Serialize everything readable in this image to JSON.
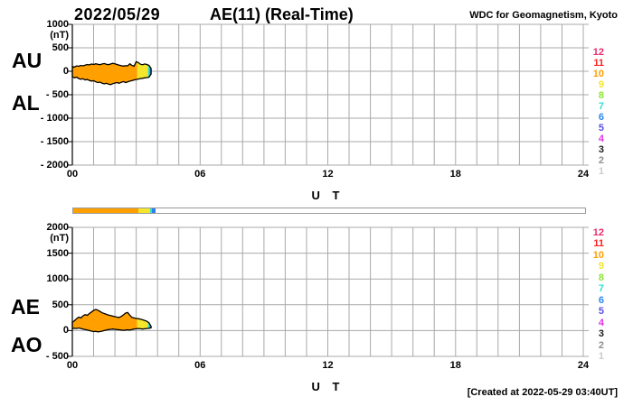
{
  "chart_data": {
    "type": "area",
    "date": "2022/05/29",
    "title": "AE(11) (Real-Time)",
    "source": "WDC for Geomagnetism, Kyoto",
    "panels": [
      {
        "id": "aual",
        "left_labels": [
          "AU",
          "AL"
        ],
        "ylabel": "(nT)",
        "ylim": [
          -2000,
          1000
        ],
        "yticks": [
          {
            "v": 1000,
            "label": "1000"
          },
          {
            "v": 500,
            "label": "500"
          },
          {
            "v": 0,
            "label": "0"
          },
          {
            "v": -500,
            "label": "- 500"
          },
          {
            "v": -1000,
            "label": "- 1000"
          },
          {
            "v": -1500,
            "label": "- 1500"
          },
          {
            "v": -2000,
            "label": "- 2000"
          }
        ],
        "xlim": [
          0,
          24
        ],
        "xgrid": 1,
        "xticks": [
          {
            "t": 0,
            "label": "00"
          },
          {
            "t": 6,
            "label": "06"
          },
          {
            "t": 12,
            "label": "12"
          },
          {
            "t": 18,
            "label": "18"
          },
          {
            "t": 24,
            "label": "24"
          }
        ],
        "xlabel": "U T",
        "x": [
          0,
          0.1,
          0.2,
          0.3,
          0.4,
          0.5,
          0.6,
          0.7,
          0.8,
          0.9,
          1,
          1.1,
          1.2,
          1.3,
          1.4,
          1.5,
          1.6,
          1.7,
          1.8,
          1.9,
          2,
          2.1,
          2.2,
          2.3,
          2.4,
          2.5,
          2.6,
          2.7,
          2.8,
          2.9,
          3,
          3.1,
          3.2,
          3.3,
          3.4,
          3.5,
          3.6,
          3.7
        ],
        "series": [
          {
            "name": "AU",
            "values": [
              100,
              90,
              115,
              105,
              125,
              115,
              130,
              145,
              135,
              155,
              145,
              160,
              150,
              140,
              155,
              165,
              150,
              140,
              155,
              170,
              160,
              145,
              130,
              120,
              110,
              120,
              115,
              160,
              125,
              110,
              205,
              185,
              150,
              140,
              155,
              145,
              125,
              60
            ]
          },
          {
            "name": "AL",
            "values": [
              -115,
              -140,
              -125,
              -155,
              -170,
              -160,
              -185,
              -175,
              -195,
              -210,
              -200,
              -225,
              -240,
              -230,
              -255,
              -270,
              -255,
              -275,
              -285,
              -265,
              -250,
              -240,
              -255,
              -235,
              -220,
              -240,
              -225,
              -210,
              -200,
              -185,
              -175,
              -165,
              -155,
              -150,
              -140,
              -135,
              -125,
              -60
            ]
          }
        ],
        "segments": [
          {
            "from": 0,
            "to": 3.05,
            "color": "#FFA000"
          },
          {
            "from": 3.05,
            "to": 3.55,
            "color": "#F6E62B"
          },
          {
            "from": 3.55,
            "to": 3.63,
            "color": "#35DECC"
          },
          {
            "from": 3.63,
            "to": 3.72,
            "color": "#2E7EF0"
          }
        ]
      },
      {
        "id": "aeao",
        "left_labels": [
          "AE",
          "AO"
        ],
        "ylabel": "(nT)",
        "ylim": [
          -500,
          2000
        ],
        "yticks": [
          {
            "v": 2000,
            "label": "2000"
          },
          {
            "v": 1500,
            "label": "1500"
          },
          {
            "v": 1000,
            "label": "1000"
          },
          {
            "v": 500,
            "label": "500"
          },
          {
            "v": 0,
            "label": "0"
          },
          {
            "v": -500,
            "label": "- 500"
          }
        ],
        "xlim": [
          0,
          24
        ],
        "xgrid": 1,
        "xticks": [
          {
            "t": 0,
            "label": "00"
          },
          {
            "t": 6,
            "label": "06"
          },
          {
            "t": 12,
            "label": "12"
          },
          {
            "t": 18,
            "label": "18"
          },
          {
            "t": 24,
            "label": "24"
          }
        ],
        "xlabel": "U T",
        "x": [
          0,
          0.1,
          0.2,
          0.3,
          0.4,
          0.5,
          0.6,
          0.7,
          0.8,
          0.9,
          1,
          1.1,
          1.2,
          1.3,
          1.4,
          1.5,
          1.6,
          1.7,
          1.8,
          1.9,
          2,
          2.1,
          2.2,
          2.3,
          2.4,
          2.5,
          2.6,
          2.7,
          2.8,
          2.9,
          3,
          3.1,
          3.2,
          3.3,
          3.4,
          3.5,
          3.6,
          3.7
        ],
        "series": [
          {
            "name": "AE",
            "values": [
              160,
              190,
              230,
              260,
              245,
              285,
              310,
              295,
              330,
              360,
              390,
              410,
              395,
              370,
              345,
              330,
              315,
              300,
              290,
              280,
              270,
              260,
              255,
              275,
              305,
              340,
              350,
              295,
              255,
              245,
              235,
              230,
              220,
              210,
              195,
              180,
              150,
              80
            ]
          },
          {
            "name": "AO",
            "values": [
              35,
              45,
              40,
              50,
              40,
              30,
              20,
              10,
              0,
              -10,
              -20,
              -15,
              -25,
              -20,
              -10,
              0,
              10,
              20,
              25,
              30,
              25,
              20,
              15,
              10,
              5,
              10,
              15,
              10,
              20,
              30,
              35,
              40,
              35,
              30,
              35,
              40,
              45,
              55
            ]
          }
        ],
        "segments": [
          {
            "from": 0,
            "to": 3.05,
            "color": "#FFA000"
          },
          {
            "from": 3.05,
            "to": 3.55,
            "color": "#F6E62B"
          },
          {
            "from": 3.55,
            "to": 3.63,
            "color": "#35DECC"
          },
          {
            "from": 3.63,
            "to": 3.72,
            "color": "#2E7EF0"
          }
        ]
      }
    ]
  },
  "station_scale": [
    {
      "label": "12",
      "color": "#E82B6B"
    },
    {
      "label": "11",
      "color": "#FF1F1F"
    },
    {
      "label": "10",
      "color": "#FF9E00"
    },
    {
      "label": "9",
      "color": "#F2E530"
    },
    {
      "label": "8",
      "color": "#8EE335"
    },
    {
      "label": "7",
      "color": "#33E0D0"
    },
    {
      "label": "6",
      "color": "#2E86F0"
    },
    {
      "label": "5",
      "color": "#5B51E8"
    },
    {
      "label": "4",
      "color": "#E335E3"
    },
    {
      "label": "3",
      "color": "#1C1C1C"
    },
    {
      "label": "2",
      "color": "#909090"
    },
    {
      "label": "1",
      "color": "#CCCCCC"
    }
  ],
  "availability_bar": {
    "xmax": 24,
    "segments": [
      {
        "from": 0,
        "to": 3.05,
        "color": "#FFA000"
      },
      {
        "from": 3.05,
        "to": 3.6,
        "color": "#F6E62B"
      },
      {
        "from": 3.6,
        "to": 3.68,
        "color": "#35DECC"
      },
      {
        "from": 3.68,
        "to": 3.85,
        "color": "#2E7EF0"
      }
    ]
  },
  "style": {
    "grid_color": "#a9a9a9",
    "axis_color": "#000000",
    "outline_color": "#000000"
  },
  "footer": {
    "created": "[Created at 2022-05-29 03:40UT]"
  }
}
